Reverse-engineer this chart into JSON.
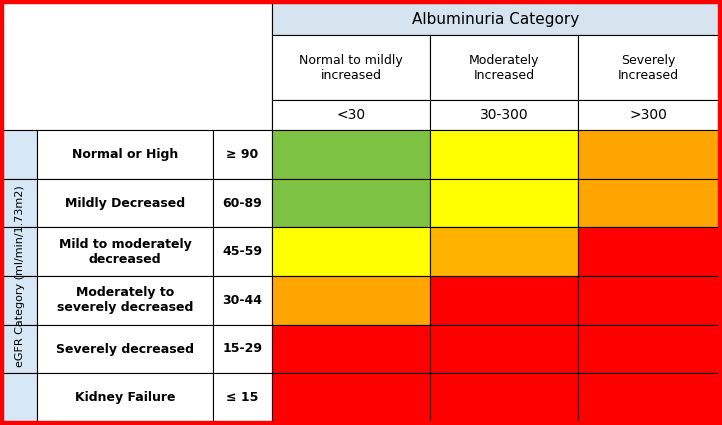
{
  "title": "Albuminuria Category",
  "col_headers": [
    "Normal to mildly\nincreased",
    "Moderately\nIncreased",
    "Severely\nIncreased"
  ],
  "col_subheaders": [
    "<30",
    "30-300",
    ">300"
  ],
  "row_labels": [
    "Normal or High",
    "Mildly Decreased",
    "Mild to moderately\ndecreased",
    "Moderately to\nseverely decreased",
    "Severely decreased",
    "Kidney Failure"
  ],
  "row_sublabels": [
    "≥ 90",
    "60-89",
    "45-59",
    "30-44",
    "15-29",
    "≤ 15"
  ],
  "egfr_label": "eGFR Category (ml/min/1.73m2)",
  "colors": [
    [
      "#7DC242",
      "#FFFF00",
      "#FFA500"
    ],
    [
      "#7DC242",
      "#FFFF00",
      "#FFA500"
    ],
    [
      "#FFFF00",
      "#FFB300",
      "#FF0000"
    ],
    [
      "#FFA500",
      "#FF0000",
      "#FF0000"
    ],
    [
      "#FF0000",
      "#FF0000",
      "#FF0000"
    ],
    [
      "#FF0000",
      "#FF0000",
      "#FF0000"
    ]
  ],
  "outer_border_color": "#FF0000",
  "header_bg_color": "#D6E4F0",
  "egfr_bg_color": "#D6E8F5",
  "figsize": [
    7.22,
    4.25
  ],
  "dpi": 100
}
